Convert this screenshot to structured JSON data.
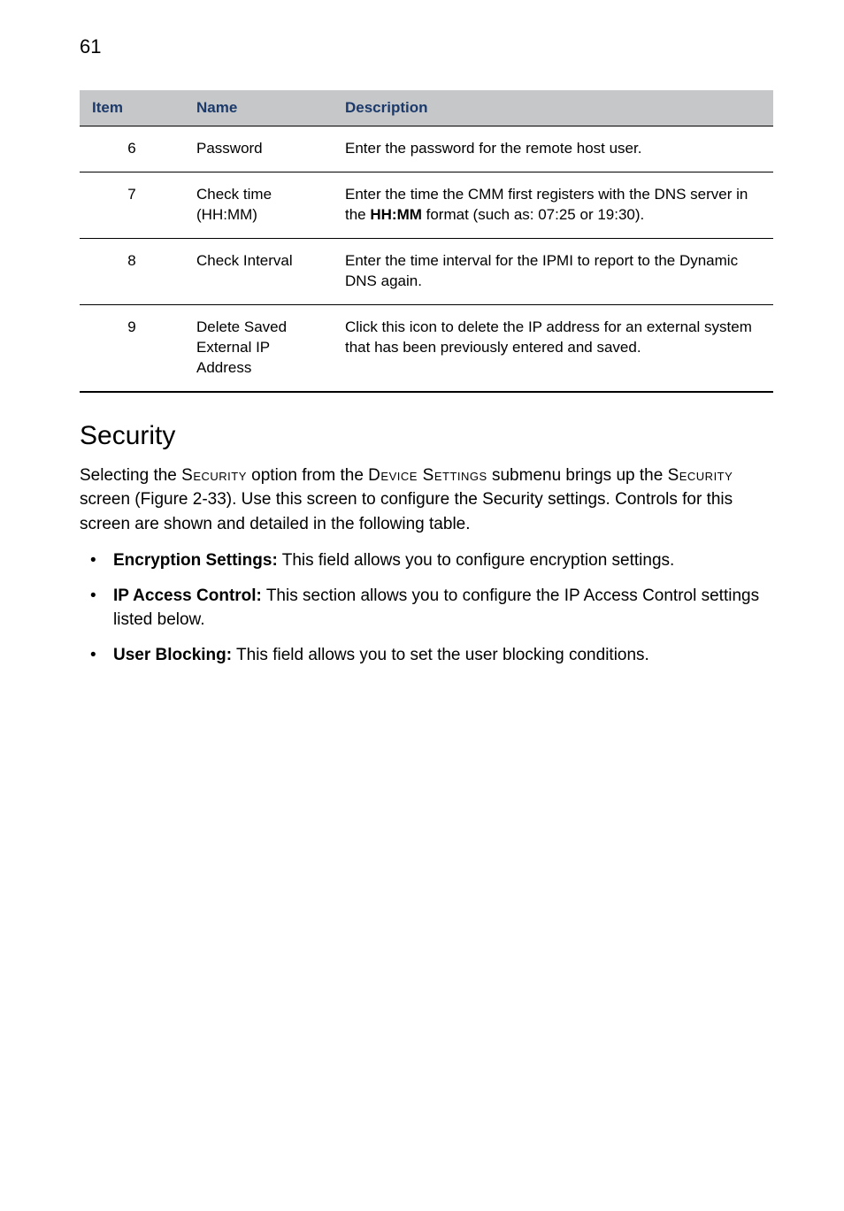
{
  "pageNumber": "61",
  "table": {
    "headers": {
      "item": "Item",
      "name": "Name",
      "description": "Description"
    },
    "rows": [
      {
        "item": "6",
        "name": "Password",
        "desc_plain": "Enter the password for the remote host user."
      },
      {
        "item": "7",
        "name": "Check time (HH:MM)",
        "desc_pre": "Enter the time the CMM first registers with the DNS server in the ",
        "desc_bold": "HH:MM",
        "desc_post": " format (such as: 07:25 or 19:30)."
      },
      {
        "item": "8",
        "name": "Check Interval",
        "desc_plain": "Enter the time interval for the IPMI to report to the Dynamic DNS again."
      },
      {
        "item": "9",
        "name": "Delete Saved External IP Address",
        "desc_plain": "Click this icon to delete the IP address for an external system that has been previously entered and saved."
      }
    ]
  },
  "heading": "Security",
  "para": {
    "p1_a": "Selecting the ",
    "p1_sc1": "Security",
    "p1_b": " option from the ",
    "p1_sc2": "Device Settings",
    "p1_c": " submenu brings up the ",
    "p1_sc3": "Security",
    "p1_d": " screen (Figure 2-33). Use this screen to configure the Security settings. Controls for this screen are shown and detailed in the following table."
  },
  "bullets": [
    {
      "bold": "Encryption Settings:",
      "text": " This field allows you to configure encryption settings."
    },
    {
      "bold": "IP Access Control:",
      "text": " This section allows you to configure the IP Access Control settings listed below."
    },
    {
      "bold": "User Blocking:",
      "text": " This field allows you to set the user blocking conditions."
    }
  ]
}
